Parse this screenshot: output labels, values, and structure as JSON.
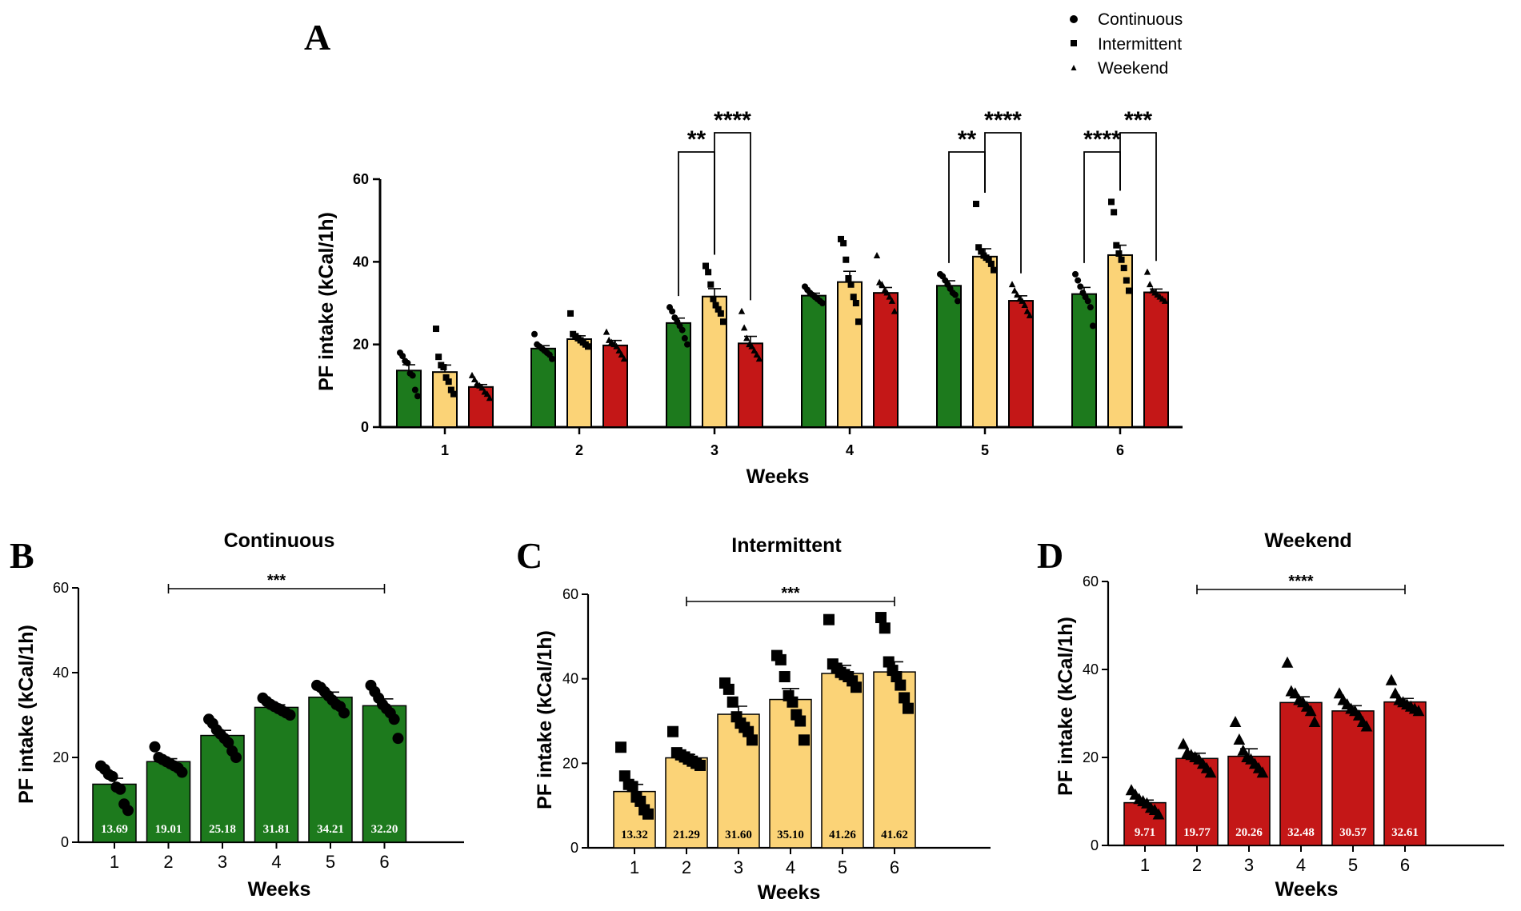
{
  "colors": {
    "continuous": "#1d7a1d",
    "intermittent": "#fbd377",
    "weekend": "#c41717"
  },
  "chart_data": [
    {
      "panel": "A",
      "type": "bar",
      "title": "",
      "xlabel": "Weeks",
      "ylabel": "PF intake (kCal/1h)",
      "ylim": [
        0,
        60
      ],
      "yticks": [
        "0",
        "20",
        "40",
        "60"
      ],
      "categories": [
        "1",
        "2",
        "3",
        "4",
        "5",
        "6"
      ],
      "legend": {
        "position": "top-right",
        "entries": [
          {
            "name": "Continuous",
            "marker": "circle"
          },
          {
            "name": "Intermittent",
            "marker": "square"
          },
          {
            "name": "Weekend",
            "marker": "triangle"
          }
        ]
      },
      "series": [
        {
          "name": "Continuous",
          "values": [
            13.69,
            19.01,
            25.18,
            31.81,
            34.21,
            32.2
          ],
          "sem": [
            1.4,
            0.7,
            1.2,
            0.6,
            1.2,
            1.6
          ]
        },
        {
          "name": "Intermittent",
          "values": [
            13.32,
            21.29,
            31.6,
            35.1,
            41.26,
            41.62
          ],
          "sem": [
            1.7,
            0.8,
            1.9,
            2.6,
            1.9,
            2.4
          ]
        },
        {
          "name": "Weekend",
          "values": [
            9.71,
            19.77,
            20.26,
            32.48,
            30.57,
            32.61
          ],
          "sem": [
            0.6,
            1.2,
            1.7,
            1.3,
            1.2,
            0.8
          ]
        }
      ],
      "points": [
        [
          [
            18,
            17.2,
            16,
            15.5,
            13,
            12.5,
            9,
            7.5
          ],
          [
            23.8,
            17,
            15,
            14.5,
            12,
            11,
            9,
            8
          ],
          [
            12.5,
            11.5,
            10.5,
            10,
            9.5,
            8.5,
            8,
            7
          ]
        ],
        [
          [
            22.5,
            20,
            19.5,
            19,
            18.5,
            18,
            17.5,
            16.5
          ],
          [
            27.5,
            22.5,
            22,
            21.5,
            21,
            20.5,
            20,
            19.5
          ],
          [
            23,
            21,
            20.5,
            20,
            19.5,
            18.5,
            17.5,
            16.5
          ]
        ],
        [
          [
            29,
            28,
            26.5,
            25.5,
            24.5,
            23.5,
            21.5,
            20
          ],
          [
            39,
            37.5,
            34.5,
            31,
            29.5,
            28.5,
            27.5,
            25.5
          ],
          [
            28,
            24,
            21.5,
            20,
            19.5,
            18.5,
            17.5,
            16.5
          ]
        ],
        [
          [
            34,
            33.2,
            32.5,
            32,
            31.5,
            31,
            30.5,
            30
          ],
          [
            45.5,
            44.5,
            40.5,
            36,
            34.5,
            31.5,
            30,
            25.5
          ],
          [
            41.5,
            35,
            34.5,
            33,
            32.5,
            31.5,
            30.5,
            28
          ]
        ],
        [
          [
            37,
            36.5,
            35.5,
            34.5,
            33.5,
            32.5,
            32,
            30.5
          ],
          [
            54,
            43.5,
            42.5,
            41.5,
            41,
            40.5,
            39.5,
            38
          ],
          [
            34.5,
            33,
            32,
            31,
            30.5,
            29.5,
            28,
            27
          ]
        ],
        [
          [
            37,
            35.5,
            34,
            32.5,
            31.5,
            30.5,
            29,
            24.5
          ],
          [
            54.5,
            52,
            44,
            42,
            40.5,
            38.5,
            35.5,
            33
          ],
          [
            37.5,
            34.5,
            33,
            32.5,
            32,
            31.5,
            31,
            30.5
          ]
        ]
      ],
      "significance": [
        {
          "week": "3",
          "between": [
            "Continuous",
            "Intermittent"
          ],
          "label": "**"
        },
        {
          "week": "3",
          "between": [
            "Intermittent",
            "Weekend"
          ],
          "label": "****"
        },
        {
          "week": "5",
          "between": [
            "Continuous",
            "Intermittent"
          ],
          "label": "**"
        },
        {
          "week": "5",
          "between": [
            "Intermittent",
            "Weekend"
          ],
          "label": "****"
        },
        {
          "week": "6",
          "between": [
            "Continuous",
            "Intermittent"
          ],
          "label": "****"
        },
        {
          "week": "6",
          "between": [
            "Intermittent",
            "Weekend"
          ],
          "label": "***"
        }
      ]
    },
    {
      "panel": "B",
      "type": "bar",
      "title": "Continuous",
      "xlabel": "Weeks",
      "ylabel": "PF intake (kCal/1h)",
      "ylim": [
        0,
        60
      ],
      "yticks": [
        "0",
        "20",
        "40",
        "60"
      ],
      "categories": [
        "1",
        "2",
        "3",
        "4",
        "5",
        "6"
      ],
      "values": [
        13.69,
        19.01,
        25.18,
        31.81,
        34.21,
        32.2
      ],
      "data_labels": [
        "13.69",
        "19.01",
        "25.18",
        "31.81",
        "34.21",
        "32.20"
      ],
      "sem": [
        1.4,
        0.7,
        1.2,
        0.6,
        1.2,
        1.6
      ],
      "marker": "circle",
      "points": [
        [
          18,
          17.2,
          16,
          15.5,
          13,
          12.5,
          9,
          7.5
        ],
        [
          22.5,
          20,
          19.5,
          19,
          18.5,
          18,
          17.5,
          16.5
        ],
        [
          29,
          28,
          26.5,
          25.5,
          24.5,
          23.5,
          21.5,
          20
        ],
        [
          34,
          33.2,
          32.5,
          32,
          31.5,
          31,
          30.5,
          30
        ],
        [
          37,
          36.5,
          35.5,
          34.5,
          33.5,
          32.5,
          32,
          30.5
        ],
        [
          37,
          35.5,
          34,
          32.5,
          31.5,
          30.5,
          29,
          24.5
        ]
      ],
      "significance": {
        "from": "2",
        "to": "6",
        "label": "***"
      }
    },
    {
      "panel": "C",
      "type": "bar",
      "title": "Intermittent",
      "xlabel": "Weeks",
      "ylabel": "PF intake (kCal/1h)",
      "ylim": [
        0,
        60
      ],
      "yticks": [
        "0",
        "20",
        "40",
        "60"
      ],
      "categories": [
        "1",
        "2",
        "3",
        "4",
        "5",
        "6"
      ],
      "values": [
        13.32,
        21.29,
        31.6,
        35.1,
        41.26,
        41.62
      ],
      "data_labels": [
        "13.32",
        "21.29",
        "31.60",
        "35.10",
        "41.26",
        "41.62"
      ],
      "sem": [
        1.7,
        0.8,
        1.9,
        2.6,
        1.9,
        2.4
      ],
      "marker": "square",
      "points": [
        [
          23.8,
          17,
          15,
          14.5,
          12,
          11,
          9,
          8
        ],
        [
          27.5,
          22.5,
          22,
          21.5,
          21,
          20.5,
          20,
          19.5
        ],
        [
          39,
          37.5,
          34.5,
          31,
          29.5,
          28.5,
          27.5,
          25.5
        ],
        [
          45.5,
          44.5,
          40.5,
          36,
          34.5,
          31.5,
          30,
          25.5
        ],
        [
          54,
          43.5,
          42.5,
          41.5,
          41,
          40.5,
          39.5,
          38
        ],
        [
          54.5,
          52,
          44,
          42,
          40.5,
          38.5,
          35.5,
          33
        ]
      ],
      "significance": {
        "from": "2",
        "to": "6",
        "label": "***"
      }
    },
    {
      "panel": "D",
      "type": "bar",
      "title": "Weekend",
      "xlabel": "Weeks",
      "ylabel": "PF intake (kCal/1h)",
      "ylim": [
        0,
        60
      ],
      "yticks": [
        "0",
        "20",
        "40",
        "60"
      ],
      "categories": [
        "1",
        "2",
        "3",
        "4",
        "5",
        "6"
      ],
      "values": [
        9.71,
        19.77,
        20.26,
        32.48,
        30.57,
        32.61
      ],
      "data_labels": [
        "9.71",
        "19.77",
        "20.26",
        "32.48",
        "30.57",
        "32.61"
      ],
      "sem": [
        0.6,
        1.2,
        1.7,
        1.3,
        1.2,
        0.8
      ],
      "marker": "triangle",
      "points": [
        [
          12.5,
          11.5,
          10.5,
          10,
          9.5,
          8.5,
          8,
          7
        ],
        [
          23,
          21,
          20.5,
          20,
          19.5,
          18.5,
          17.5,
          16.5
        ],
        [
          28,
          24,
          21.5,
          20,
          19.5,
          18.5,
          17.5,
          16.5
        ],
        [
          41.5,
          35,
          34.5,
          33,
          32.5,
          31.5,
          30.5,
          28
        ],
        [
          34.5,
          33,
          32,
          31,
          30.5,
          29.5,
          28,
          27
        ],
        [
          37.5,
          34.5,
          33,
          32.5,
          32,
          31.5,
          31,
          30.5
        ]
      ],
      "significance": {
        "from": "2",
        "to": "6",
        "label": "****"
      }
    }
  ]
}
